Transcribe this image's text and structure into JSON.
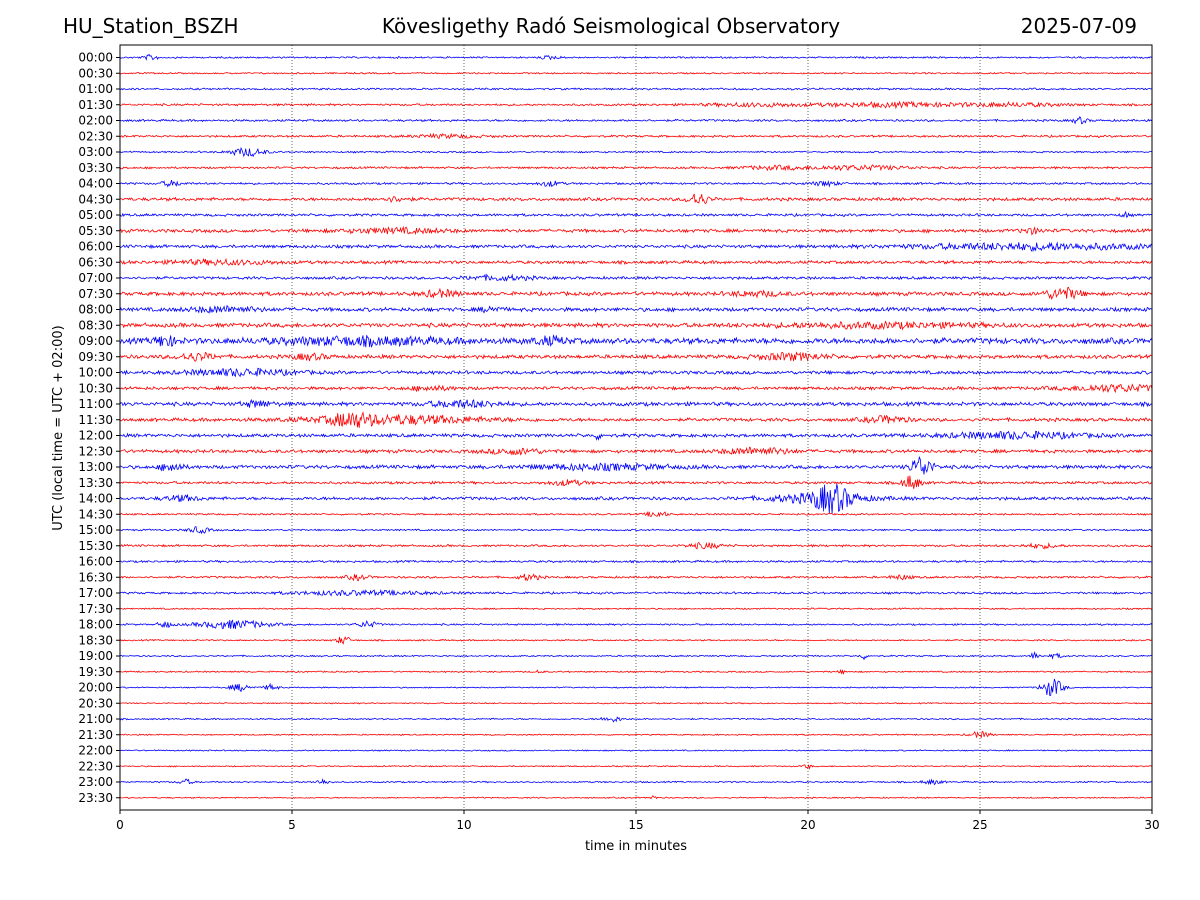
{
  "header": {
    "station": "HU_Station_BSZH",
    "observatory": "Kövesligethy Radó Seismological Observatory",
    "date": "2025-07-09"
  },
  "chart_data": {
    "type": "line",
    "title": "Kövesligethy Radó Seismological Observatory",
    "xlabel": "time in minutes",
    "ylabel": "UTC (local time = UTC + 02:00)",
    "xlim": [
      0,
      30
    ],
    "xticks": [
      "0",
      "5",
      "10",
      "15",
      "20",
      "25",
      "30"
    ],
    "grid": "vertical dotted at every 5 minutes",
    "colors": {
      "even_rows": "#0000ff",
      "odd_rows": "#ff0000"
    },
    "rows": [
      {
        "label": "00:00",
        "noise": 0.8,
        "events": [
          [
            0.9,
            2.5,
            0.2
          ],
          [
            12.5,
            1.5,
            0.3
          ]
        ]
      },
      {
        "label": "00:30",
        "noise": 0.7,
        "events": []
      },
      {
        "label": "01:00",
        "noise": 0.9,
        "events": []
      },
      {
        "label": "01:30",
        "noise": 1.0,
        "events": [
          [
            18.5,
            1.5,
            1.5
          ],
          [
            22.5,
            2,
            2
          ],
          [
            26,
            1.5,
            1.5
          ]
        ]
      },
      {
        "label": "02:00",
        "noise": 1.0,
        "events": [
          [
            27.9,
            3,
            0.2
          ]
        ]
      },
      {
        "label": "02:30",
        "noise": 1.0,
        "events": [
          [
            9.5,
            1.5,
            1.0
          ]
        ]
      },
      {
        "label": "03:00",
        "noise": 0.8,
        "events": [
          [
            3.7,
            4,
            0.5
          ]
        ]
      },
      {
        "label": "03:30",
        "noise": 1.0,
        "events": [
          [
            21.5,
            2,
            1.5
          ],
          [
            19,
            1.5,
            1.0
          ]
        ]
      },
      {
        "label": "04:00",
        "noise": 1.0,
        "events": [
          [
            1.5,
            2.5,
            0.3
          ],
          [
            12.5,
            2.5,
            0.3
          ],
          [
            20.5,
            2,
            0.4
          ]
        ]
      },
      {
        "label": "04:30",
        "noise": 1.5,
        "events": [
          [
            16.8,
            6,
            0.3
          ],
          [
            8,
            2,
            0.4
          ]
        ]
      },
      {
        "label": "05:00",
        "noise": 1.2,
        "events": [
          [
            29.2,
            3,
            0.1
          ]
        ]
      },
      {
        "label": "05:30",
        "noise": 1.6,
        "events": [
          [
            8,
            2,
            1.5
          ],
          [
            26.5,
            2.5,
            0.3
          ]
        ]
      },
      {
        "label": "06:00",
        "noise": 1.5,
        "events": [
          [
            26.5,
            3,
            3.5
          ]
        ]
      },
      {
        "label": "06:30",
        "noise": 1.5,
        "events": [
          [
            3,
            2,
            1.5
          ]
        ]
      },
      {
        "label": "07:00",
        "noise": 1.3,
        "events": [
          [
            11,
            2,
            1.0
          ]
        ]
      },
      {
        "label": "07:30",
        "noise": 1.8,
        "events": [
          [
            27.4,
            5.5,
            0.5
          ],
          [
            9.3,
            3,
            0.5
          ],
          [
            18.5,
            2,
            0.8
          ]
        ]
      },
      {
        "label": "08:00",
        "noise": 1.8,
        "events": [
          [
            3,
            2.5,
            1.0
          ],
          [
            10.8,
            2.5,
            0.3
          ]
        ]
      },
      {
        "label": "08:30",
        "noise": 2.0,
        "events": [
          [
            22,
            2,
            3
          ]
        ]
      },
      {
        "label": "09:00",
        "noise": 2.8,
        "events": [
          [
            1.3,
            5,
            0.3
          ],
          [
            7,
            3,
            2.5
          ],
          [
            12.5,
            3,
            0.5
          ]
        ]
      },
      {
        "label": "09:30",
        "noise": 1.8,
        "events": [
          [
            2.2,
            3.5,
            0.5
          ],
          [
            19.5,
            3,
            1.0
          ],
          [
            5.5,
            2.5,
            0.5
          ]
        ]
      },
      {
        "label": "10:00",
        "noise": 1.6,
        "events": [
          [
            3.5,
            3,
            1.5
          ]
        ]
      },
      {
        "label": "10:30",
        "noise": 1.5,
        "events": [
          [
            29,
            3,
            1.5
          ],
          [
            9,
            2,
            0.6
          ]
        ]
      },
      {
        "label": "11:00",
        "noise": 1.8,
        "events": [
          [
            10,
            3,
            1.0
          ],
          [
            4,
            3,
            0.4
          ]
        ]
      },
      {
        "label": "11:30",
        "noise": 1.6,
        "events": [
          [
            6.7,
            5,
            0.5
          ],
          [
            8,
            4,
            2.5
          ],
          [
            22.3,
            3,
            0.6
          ]
        ]
      },
      {
        "label": "12:00",
        "noise": 1.6,
        "events": [
          [
            26,
            3,
            2.0
          ],
          [
            13.9,
            3,
            0.1
          ]
        ]
      },
      {
        "label": "12:30",
        "noise": 1.6,
        "events": [
          [
            18.5,
            3,
            1.0
          ],
          [
            11.5,
            2.5,
            0.8
          ]
        ]
      },
      {
        "label": "13:00",
        "noise": 1.7,
        "events": [
          [
            23.3,
            10,
            0.3
          ],
          [
            1.5,
            4.5,
            0.3
          ],
          [
            14,
            2.5,
            2
          ]
        ]
      },
      {
        "label": "13:30",
        "noise": 1.2,
        "events": [
          [
            23,
            7,
            0.25
          ],
          [
            13,
            2.5,
            0.5
          ]
        ]
      },
      {
        "label": "14:00",
        "noise": 1.5,
        "events": [
          [
            20.7,
            11,
            0.5
          ],
          [
            20.3,
            4,
            1.5
          ],
          [
            1.8,
            2.5,
            0.5
          ]
        ]
      },
      {
        "label": "14:30",
        "noise": 0.8,
        "events": [
          [
            15.6,
            3,
            0.3
          ]
        ]
      },
      {
        "label": "15:00",
        "noise": 0.8,
        "events": [
          [
            2.3,
            3,
            0.3
          ]
        ]
      },
      {
        "label": "15:30",
        "noise": 1.0,
        "events": [
          [
            17,
            2.5,
            0.5
          ],
          [
            26.8,
            2,
            0.5
          ]
        ]
      },
      {
        "label": "16:00",
        "noise": 1.0,
        "events": []
      },
      {
        "label": "16:30",
        "noise": 1.0,
        "events": [
          [
            11.9,
            3,
            0.3
          ],
          [
            6.9,
            2.5,
            0.3
          ],
          [
            22.7,
            2,
            0.3
          ]
        ]
      },
      {
        "label": "17:00",
        "noise": 1.0,
        "events": [
          [
            7,
            2,
            2.0
          ]
        ]
      },
      {
        "label": "17:30",
        "noise": 0.7,
        "events": []
      },
      {
        "label": "18:00",
        "noise": 0.8,
        "events": [
          [
            3.3,
            4,
            1.0
          ],
          [
            1.3,
            3,
            0.2
          ],
          [
            7.2,
            3,
            0.3
          ]
        ]
      },
      {
        "label": "18:30",
        "noise": 0.7,
        "events": [
          [
            6.5,
            4,
            0.2
          ]
        ]
      },
      {
        "label": "19:00",
        "noise": 0.7,
        "events": [
          [
            26.6,
            5,
            0.1
          ],
          [
            21.6,
            3,
            0.1
          ],
          [
            27.2,
            2,
            0.2
          ]
        ]
      },
      {
        "label": "19:30",
        "noise": 0.7,
        "events": [
          [
            12.2,
            2,
            0.1
          ],
          [
            21,
            2,
            0.1
          ]
        ]
      },
      {
        "label": "20:00",
        "noise": 0.6,
        "events": [
          [
            27.1,
            9,
            0.3
          ],
          [
            3.5,
            3.5,
            0.3
          ],
          [
            4.4,
            3,
            0.2
          ]
        ]
      },
      {
        "label": "20:30",
        "noise": 0.6,
        "events": []
      },
      {
        "label": "21:00",
        "noise": 0.7,
        "events": [
          [
            14.3,
            2.5,
            0.3
          ]
        ]
      },
      {
        "label": "21:30",
        "noise": 0.6,
        "events": [
          [
            25,
            3,
            0.3
          ]
        ]
      },
      {
        "label": "22:00",
        "noise": 0.6,
        "events": []
      },
      {
        "label": "22:30",
        "noise": 0.6,
        "events": [
          [
            20,
            2.5,
            0.1
          ]
        ]
      },
      {
        "label": "23:00",
        "noise": 0.7,
        "events": [
          [
            1.9,
            2.5,
            0.2
          ],
          [
            5.9,
            2.5,
            0.2
          ],
          [
            23.6,
            2,
            0.3
          ]
        ]
      },
      {
        "label": "23:30",
        "noise": 0.6,
        "events": [
          [
            15.5,
            2,
            0.1
          ]
        ]
      }
    ]
  }
}
